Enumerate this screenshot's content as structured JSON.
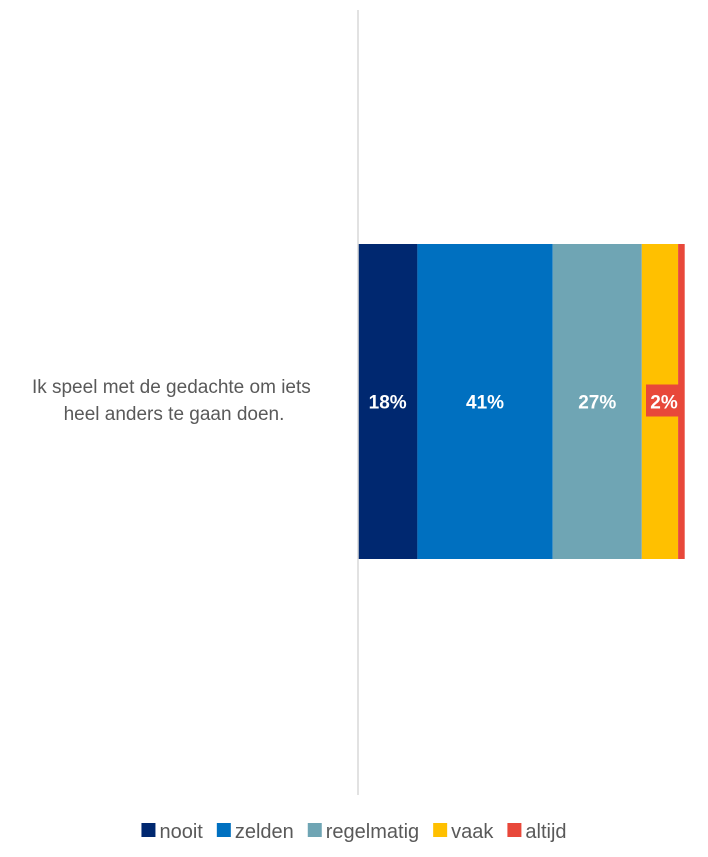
{
  "chart_data": {
    "type": "bar",
    "orientation": "horizontal",
    "stacked": true,
    "title": "",
    "xlabel": "",
    "ylabel": "",
    "categories": [
      "Ik speel met de gedachte om iets heel anders te gaan doen."
    ],
    "xlim": [
      0,
      100
    ],
    "grid": false,
    "legend_position": "bottom",
    "series": [
      {
        "name": "nooit",
        "values": [
          18
        ],
        "label": "18%",
        "color": "#002870"
      },
      {
        "name": "zelden",
        "values": [
          41
        ],
        "label": "41%",
        "color": "#0070c0"
      },
      {
        "name": "regelmatig",
        "values": [
          27
        ],
        "label": "27%",
        "color": "#6fa5b4"
      },
      {
        "name": "vaak",
        "values": [
          11
        ],
        "label": "11",
        "color": "#ffc000"
      },
      {
        "name": "altijd",
        "values": [
          2
        ],
        "label": "2%",
        "color": "#e8483a"
      }
    ]
  }
}
